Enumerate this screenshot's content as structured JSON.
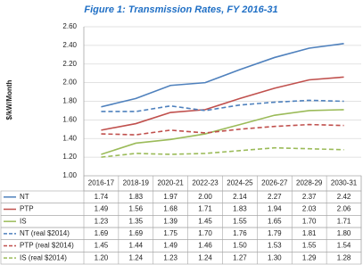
{
  "chart_data": {
    "type": "line",
    "title": "Figure 1: Transmission Rates, FY 2016-31",
    "y_label": "$/kW/Month",
    "categories": [
      "2016-17",
      "2018-19",
      "2020-21",
      "2022-23",
      "2024-25",
      "2026-27",
      "2028-29",
      "2030-31"
    ],
    "ylim": [
      1,
      2.6
    ],
    "yticks": [
      {
        "value": 1,
        "label": "1.00"
      },
      {
        "value": 1.2,
        "label": "1.20"
      },
      {
        "value": 1.4,
        "label": "1.40"
      },
      {
        "value": 1.6,
        "label": "1.60"
      },
      {
        "value": 1.8,
        "label": "1.80"
      },
      {
        "value": 2,
        "label": "2.00"
      },
      {
        "value": 2.2,
        "label": "2.20"
      },
      {
        "value": 2.4,
        "label": "2.40"
      },
      {
        "value": 2.6,
        "label": "2.60"
      }
    ],
    "grid": true,
    "series": [
      {
        "name": "NT",
        "color": "#4f81bd",
        "dashed": false,
        "values": [
          1.74,
          1.83,
          1.97,
          2.0,
          2.14,
          2.27,
          2.37,
          2.42
        ],
        "value_labels": [
          "1.74",
          "1.83",
          "1.97",
          "2.00",
          "2.14",
          "2.27",
          "2.37",
          "2.42"
        ]
      },
      {
        "name": "PTP",
        "color": "#c0504d",
        "dashed": false,
        "values": [
          1.49,
          1.56,
          1.68,
          1.71,
          1.83,
          1.94,
          2.03,
          2.06
        ],
        "value_labels": [
          "1.49",
          "1.56",
          "1.68",
          "1.71",
          "1.83",
          "1.94",
          "2.03",
          "2.06"
        ]
      },
      {
        "name": "IS",
        "color": "#9bbb59",
        "dashed": false,
        "values": [
          1.23,
          1.35,
          1.39,
          1.45,
          1.55,
          1.65,
          1.7,
          1.71
        ],
        "value_labels": [
          "1.23",
          "1.35",
          "1.39",
          "1.45",
          "1.55",
          "1.65",
          "1.70",
          "1.71"
        ]
      },
      {
        "name": "NT (real $2014)",
        "color": "#4f81bd",
        "dashed": true,
        "values": [
          1.69,
          1.69,
          1.75,
          1.7,
          1.76,
          1.79,
          1.81,
          1.8
        ],
        "value_labels": [
          "1.69",
          "1.69",
          "1.75",
          "1.70",
          "1.76",
          "1.79",
          "1.81",
          "1.80"
        ]
      },
      {
        "name": "PTP (real $2014)",
        "color": "#c0504d",
        "dashed": true,
        "values": [
          1.45,
          1.44,
          1.49,
          1.46,
          1.5,
          1.53,
          1.55,
          1.54
        ],
        "value_labels": [
          "1.45",
          "1.44",
          "1.49",
          "1.46",
          "1.50",
          "1.53",
          "1.55",
          "1.54"
        ]
      },
      {
        "name": "IS (real $2014)",
        "color": "#9bbb59",
        "dashed": true,
        "values": [
          1.2,
          1.24,
          1.23,
          1.24,
          1.27,
          1.3,
          1.29,
          1.28
        ],
        "value_labels": [
          "1.20",
          "1.24",
          "1.23",
          "1.24",
          "1.27",
          "1.30",
          "1.29",
          "1.28"
        ]
      }
    ]
  }
}
